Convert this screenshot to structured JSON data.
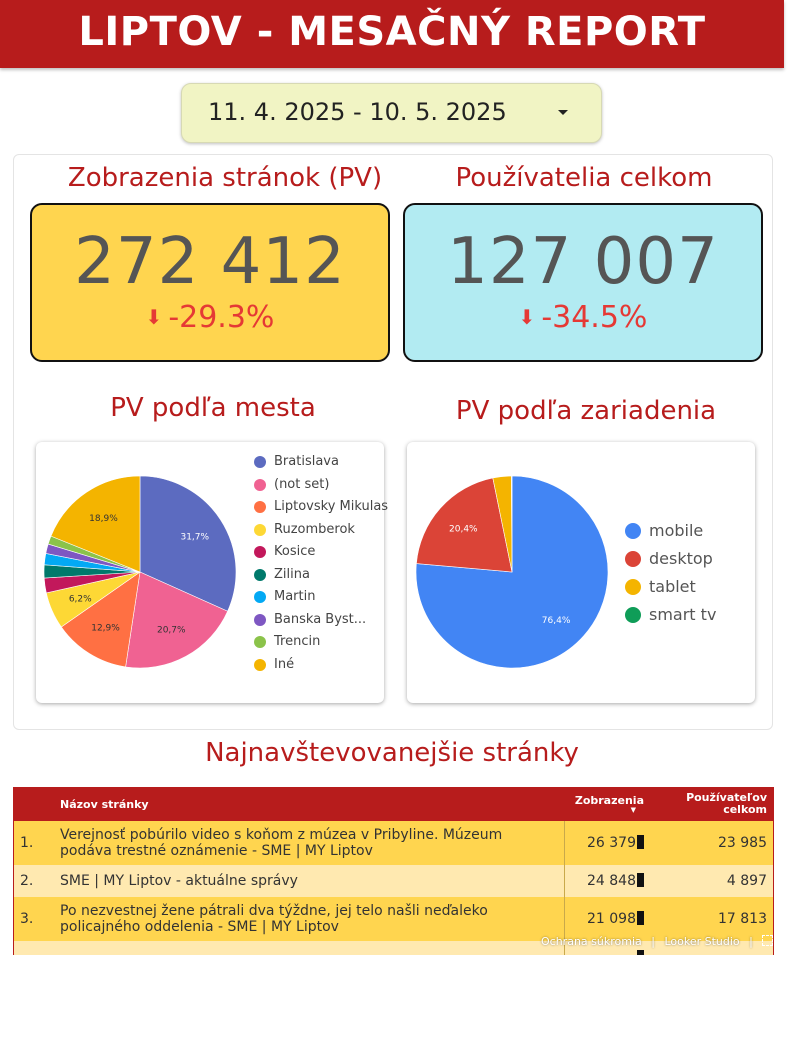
{
  "header": {
    "title": "LIPTOV - MESAČNÝ REPORT"
  },
  "date_range": {
    "value": "11. 4. 2025 - 10. 5. 2025"
  },
  "kpis": {
    "page_views": {
      "title": "Zobrazenia stránok (PV)",
      "value": "272 412",
      "change": "-29.3%",
      "bg": "#ffd54f"
    },
    "users": {
      "title": "Používatelia celkom",
      "value": "127 007",
      "change": "-34.5%",
      "bg": "#b2ebf2"
    }
  },
  "city_chart": {
    "title": "PV podľa mesta",
    "chart_data": {
      "type": "pie",
      "slices": [
        {
          "label": "Bratislava",
          "value": 31.7,
          "color": "#5c6bc0",
          "show_label": true
        },
        {
          "label": "(not set)",
          "value": 20.7,
          "color": "#f06292",
          "show_label": true
        },
        {
          "label": "Liptovsky Mikulas",
          "value": 12.9,
          "color": "#ff7043",
          "show_label": true
        },
        {
          "label": "Ruzomberok",
          "value": 6.2,
          "color": "#fdd835",
          "show_label": true
        },
        {
          "label": "Kosice",
          "value": 2.5,
          "color": "#c2185b",
          "show_label": false
        },
        {
          "label": "Zilina",
          "value": 2.2,
          "color": "#00796b",
          "show_label": false
        },
        {
          "label": "Martin",
          "value": 1.9,
          "color": "#03a9f4",
          "show_label": false
        },
        {
          "label": "Banska Byst...",
          "value": 1.6,
          "color": "#7e57c2",
          "show_label": false
        },
        {
          "label": "Trencin",
          "value": 1.4,
          "color": "#8bc34a",
          "show_label": false
        },
        {
          "label": "Iné",
          "value": 18.9,
          "color": "#f4b400",
          "show_label": true
        }
      ]
    }
  },
  "device_chart": {
    "title": "PV podľa zariadenia",
    "chart_data": {
      "type": "pie",
      "slices": [
        {
          "label": "mobile",
          "value": 76.4,
          "color": "#4285f4",
          "show_label": true
        },
        {
          "label": "desktop",
          "value": 20.4,
          "color": "#db4437",
          "show_label": true
        },
        {
          "label": "tablet",
          "value": 3.1,
          "color": "#f4b400",
          "show_label": false
        },
        {
          "label": "smart tv",
          "value": 0.1,
          "color": "#0f9d58",
          "show_label": false
        }
      ]
    }
  },
  "top_pages": {
    "title": "Najnavštevovanejšie stránky",
    "columns": {
      "name": "Názov stránky",
      "views": "Zobrazenia",
      "users": "Používateľov celkom"
    },
    "rows": [
      {
        "rank": "1.",
        "name": "Verejnosť pobúrilo video s koňom z múzea v Pribyline. Múzeum podáva trestné oznámenie - SME | MY Liptov",
        "views": "26 379",
        "users": "23 985"
      },
      {
        "rank": "2.",
        "name": "SME | MY Liptov - aktuálne správy",
        "views": "24 848",
        "users": "4 897"
      },
      {
        "rank": "3.",
        "name": "Po nezvestnej žene pátrali dva týždne, jej telo našli neďaleko policajného oddelenia - SME | MY Liptov",
        "views": "21 098",
        "users": "17 813"
      }
    ]
  },
  "footer": {
    "privacy": "Ochrana súkromia",
    "separator": "|",
    "brand": "Looker Studio"
  }
}
